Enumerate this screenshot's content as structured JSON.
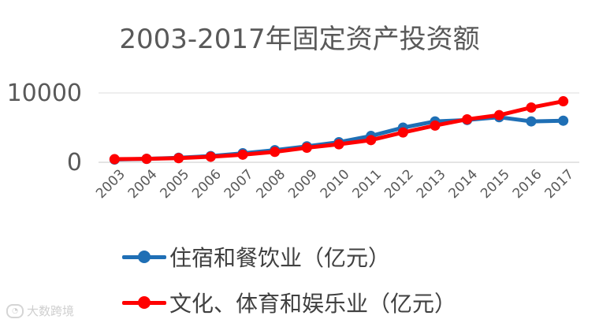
{
  "chart_data": {
    "type": "line",
    "title": "2003-2017年固定资产投资额",
    "categories": [
      "2003",
      "2004",
      "2005",
      "2006",
      "2007",
      "2008",
      "2009",
      "2010",
      "2011",
      "2012",
      "2013",
      "2014",
      "2015",
      "2016",
      "2017"
    ],
    "ylim": [
      0,
      10000
    ],
    "yticks": [
      "0",
      "10000"
    ],
    "grid": true,
    "legend_position": "bottom",
    "series": [
      {
        "name": "住宿和餐饮业（亿元）",
        "color": "#1f6fb5",
        "values": [
          400,
          500,
          650,
          900,
          1300,
          1750,
          2300,
          2900,
          3800,
          5000,
          5900,
          6100,
          6500,
          5900,
          6000
        ]
      },
      {
        "name": "文化、体育和娱乐业（亿元）",
        "color": "#ff0000",
        "values": [
          450,
          500,
          600,
          800,
          1100,
          1500,
          2100,
          2600,
          3200,
          4300,
          5300,
          6200,
          6800,
          7900,
          8800
        ]
      }
    ]
  },
  "watermark": "大数跨境"
}
